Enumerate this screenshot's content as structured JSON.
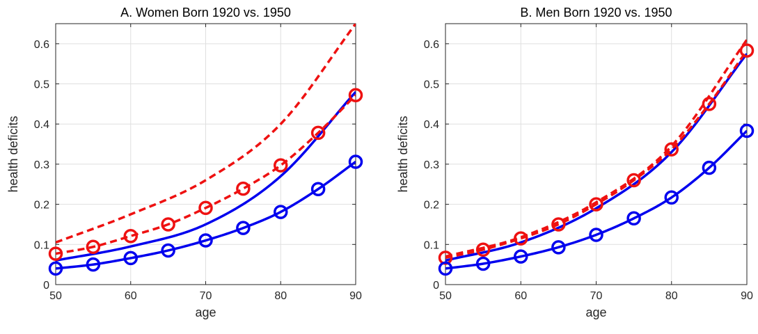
{
  "chart_data": [
    {
      "type": "line",
      "title": "A. Women Born 1920 vs. 1950",
      "xlabel": "age",
      "ylabel": "health deficits",
      "xlim": [
        50,
        90
      ],
      "ylim": [
        0,
        0.65
      ],
      "xticks": [
        "50",
        "60",
        "70",
        "80",
        "90"
      ],
      "yticks": [
        "0",
        "0.1",
        "0.2",
        "0.3",
        "0.4",
        "0.5",
        "0.6"
      ],
      "grid": true,
      "colors": {
        "blue": "#0000ee",
        "red": "#ee1111"
      },
      "series": [
        {
          "color": "blue",
          "style": "solid",
          "x": [
            50,
            60,
            70,
            80,
            90
          ],
          "values": [
            0.06,
            0.095,
            0.15,
            0.27,
            0.48
          ]
        },
        {
          "color": "red",
          "style": "dashed",
          "x": [
            50,
            60,
            70,
            80,
            90
          ],
          "values": [
            0.105,
            0.175,
            0.26,
            0.4,
            0.65
          ]
        },
        {
          "color": "red",
          "style": "dashed",
          "marker": "circle",
          "x": [
            50,
            55,
            60,
            65,
            70,
            75,
            80,
            85,
            90
          ],
          "values": [
            0.077,
            0.094,
            0.121,
            0.15,
            0.191,
            0.239,
            0.297,
            0.378,
            0.472
          ]
        },
        {
          "color": "blue",
          "style": "solid",
          "marker": "circle",
          "x": [
            50,
            55,
            60,
            65,
            70,
            75,
            80,
            85,
            90
          ],
          "values": [
            0.04,
            0.05,
            0.066,
            0.085,
            0.11,
            0.141,
            0.181,
            0.238,
            0.306
          ]
        }
      ]
    },
    {
      "type": "line",
      "title": "B. Men Born 1920 vs. 1950",
      "xlabel": "age",
      "ylabel": "health deficits",
      "xlim": [
        50,
        90
      ],
      "ylim": [
        0,
        0.65
      ],
      "xticks": [
        "50",
        "60",
        "70",
        "80",
        "90"
      ],
      "yticks": [
        "0",
        "0.1",
        "0.2",
        "0.3",
        "0.4",
        "0.5",
        "0.6"
      ],
      "grid": true,
      "colors": {
        "blue": "#0000ee",
        "red": "#ee1111"
      },
      "series": [
        {
          "color": "blue",
          "style": "solid",
          "x": [
            50,
            60,
            70,
            80,
            90
          ],
          "values": [
            0.06,
            0.105,
            0.19,
            0.33,
            0.575
          ]
        },
        {
          "color": "red",
          "style": "dashed",
          "x": [
            50,
            60,
            70,
            80,
            90
          ],
          "values": [
            0.07,
            0.118,
            0.205,
            0.345,
            0.61
          ]
        },
        {
          "color": "red",
          "style": "dashed",
          "marker": "circle",
          "x": [
            50,
            55,
            60,
            65,
            70,
            75,
            80,
            85,
            90
          ],
          "values": [
            0.067,
            0.087,
            0.115,
            0.15,
            0.2,
            0.26,
            0.337,
            0.45,
            0.583
          ]
        },
        {
          "color": "blue",
          "style": "solid",
          "marker": "circle",
          "x": [
            50,
            55,
            60,
            65,
            70,
            75,
            80,
            85,
            90
          ],
          "values": [
            0.04,
            0.052,
            0.07,
            0.093,
            0.124,
            0.165,
            0.217,
            0.291,
            0.383
          ]
        }
      ]
    }
  ]
}
